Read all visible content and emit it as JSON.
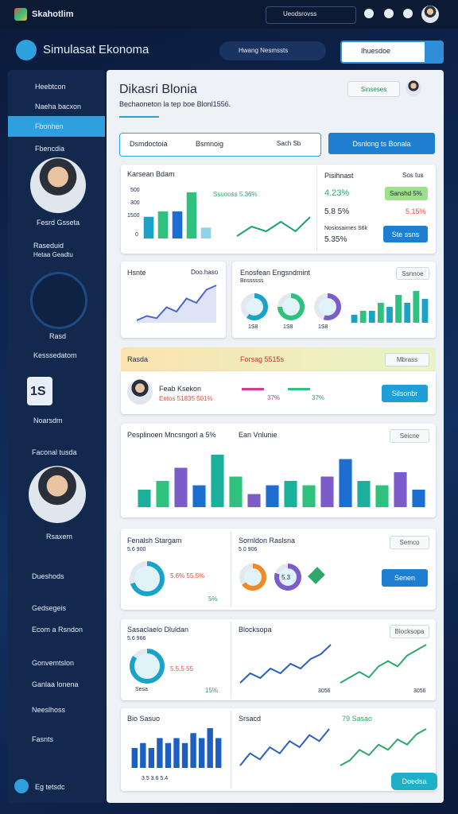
{
  "topbar": {
    "brand": "Skahotlim",
    "search": "Ueodsrovss"
  },
  "header": {
    "title": "Simulasat Ekonoma",
    "pill": "Hwang Nesmssts",
    "search": "Ihuesdoe"
  },
  "sidebar": {
    "menu": [
      "Heebtcon",
      "Naeha bacxon",
      "Fbonhen",
      "Fbencdia"
    ],
    "profile": "Fesrd Gsseta",
    "section": "Raseduid",
    "section_sub": "Hetaa Geadtu",
    "gauge_label": "Rasd",
    "stats": "Kesssedatom",
    "stat_value": "1S",
    "stat_label": "Noarsdm",
    "profile2_title": "Faconal tusda",
    "profile2": "Rsaxem",
    "links": [
      "Dueshods",
      "Gedsegeis",
      "Ecom a Rsndon",
      "Gonvemtslon",
      "Ganlaa lonena",
      "Neeslhoss",
      "Fasnts"
    ],
    "footer": "Eg tetsdc"
  },
  "main": {
    "title": "Dikasri Blonia",
    "subtitle": "Bechaoneton la tep boe Blonl1556.",
    "button": "Sinseses",
    "toolbar": {
      "select": "Dsmdoctoia",
      "filter": "Bsmnoig",
      "search": "Sach Sb",
      "action": "Dsnlong ts Bonala"
    }
  },
  "cards": {
    "market": {
      "title": "Karsean Bdam",
      "badge": "Ssuooss 5.36%",
      "axis": [
        "500",
        "300",
        "1500",
        "0"
      ]
    },
    "profit": {
      "title": "Pisihnast",
      "note": "Sos tus",
      "value": "4.23%",
      "tag": "Sanshd 5%",
      "value2": "5.8 5%",
      "value3": "5.15%",
      "label": "Nosiosaimes S6k",
      "value4": "5.35%",
      "button": "Ste ssns"
    },
    "trend": {
      "title": "Hsnte",
      "note": "Doo.haso"
    },
    "engine": {
      "title": "Enosfean Engsndmint",
      "sub": "Bnssssss",
      "button": "Ssnnoe",
      "rings": [
        "1S8",
        "1S8",
        "1S8"
      ]
    },
    "alert": {
      "title": "Rasda",
      "text": "Forsag 5515s",
      "button": "Mbrass"
    },
    "person": {
      "name": "Feab Ksekon",
      "detail": "Eetos 51835 501%",
      "a": "37%",
      "b": "37%",
      "button": "Silsonbr"
    },
    "population": {
      "title": "Pesplinoen Mncsngorl a 5%",
      "title2": "Ean Vnlunie",
      "button": "Seicne"
    },
    "program": {
      "title": "Fenalsh Stargam",
      "sub": "5.6 900",
      "detail": "5.6% 55.5%",
      "value": "5%"
    },
    "solution": {
      "title": "Sornldon Raslsna",
      "sub": "5.0 906",
      "ring": "5.3",
      "button": "Semco",
      "button2": "Senen"
    },
    "sales": {
      "title": "Sasaclaelo Dluldan",
      "sub": "5.6 966",
      "detail": "5.5.5 55",
      "value": "15%",
      "note": "Sesa"
    },
    "blocks": {
      "title": "Blocksopa",
      "x0": "3056",
      "x1": "3056"
    },
    "bio": {
      "title": "Bio Sasuo",
      "axis": "3.5 3.6 5.4"
    },
    "spread": {
      "title": "Srsacd",
      "tag": "79 Sasao",
      "button": "Doedsa"
    }
  },
  "charts": [
    {
      "type": "bars",
      "values": [
        8,
        10,
        10,
        17,
        4
      ],
      "colors": [
        "#1aa3c9",
        "#2ec27e",
        "#1c6fd1",
        "#2ec27e",
        "#8fd3e8"
      ]
    },
    {
      "type": "line",
      "values": [
        2,
        4,
        3,
        5,
        3,
        6
      ],
      "color": "#1aa37a"
    },
    {
      "type": "area",
      "values": [
        3,
        4,
        3.5,
        6,
        5,
        8,
        7,
        10,
        11
      ],
      "color": "#4a67c9"
    },
    {
      "type": "bars",
      "values": [
        2,
        3,
        3,
        5,
        4,
        7,
        5,
        8,
        6
      ],
      "colors": [
        "#1aa3c9",
        "#2ec27e"
      ]
    },
    {
      "type": "bars",
      "values": [
        4,
        6,
        9,
        5,
        12,
        7,
        3,
        5,
        6,
        5,
        7,
        11,
        6,
        5,
        8,
        4
      ],
      "colors": [
        "#1ab09b",
        "#2ec27e",
        "#7b5cc9",
        "#1c6fd1"
      ]
    },
    {
      "type": "line",
      "values": [
        3,
        5,
        4,
        6,
        5,
        7,
        6,
        8,
        9,
        11
      ],
      "color": "#2b5fc0"
    },
    {
      "type": "line",
      "values": [
        3,
        4,
        5,
        4,
        6,
        7,
        6,
        8,
        9,
        10
      ],
      "color": "#2ea86a"
    },
    {
      "type": "bars",
      "values": [
        4,
        5,
        4,
        6,
        5,
        6,
        5,
        7,
        6,
        8,
        6
      ],
      "colors": [
        "#1c5fbf"
      ]
    },
    {
      "type": "line",
      "values": [
        2,
        4,
        3,
        5,
        4,
        6,
        5,
        7,
        6,
        8
      ],
      "color": "#2b5fc0"
    },
    {
      "type": "line",
      "values": [
        2,
        3,
        5,
        4,
        6,
        5,
        7,
        6,
        8,
        9
      ],
      "color": "#2ea86a"
    },
    {
      "type": "ring",
      "values": [
        60
      ],
      "color": "#1aa3c9"
    },
    {
      "type": "ring",
      "values": [
        75
      ],
      "color": "#2ec27e"
    },
    {
      "type": "ring",
      "values": [
        55
      ],
      "color": "#7b5cc9"
    },
    {
      "type": "ring",
      "values": [
        70
      ],
      "color": "#1aa3c9"
    },
    {
      "type": "ring",
      "values": [
        65
      ],
      "color": "#f08a24"
    },
    {
      "type": "ring",
      "values": [
        80
      ],
      "color": "#7b5cc9"
    },
    {
      "type": "ring",
      "values": [
        85
      ],
      "color": "#1aa3c9"
    },
    {
      "type": "ring",
      "values": [
        72
      ],
      "color": "#1e9fd8"
    }
  ]
}
